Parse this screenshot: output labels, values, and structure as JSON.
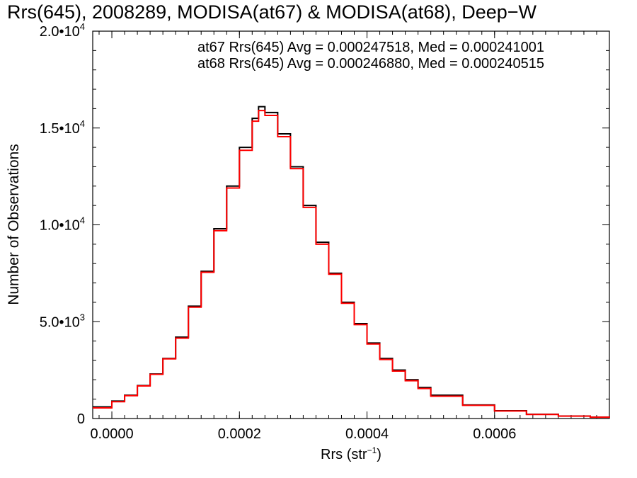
{
  "chart_data": {
    "type": "line",
    "title": "Rrs(645), 2008289, MODISA(at67) & MODISA(at68), Deep−W",
    "xlabel": {
      "main": "Rrs (str",
      "sup": "−1",
      "end": ")"
    },
    "ylabel": "Number of Observations",
    "xlim": [
      -3e-05,
      0.00078
    ],
    "ylim": [
      0,
      20000
    ],
    "x_ticks": [
      {
        "value": 0.0,
        "label": "0.0000"
      },
      {
        "value": 0.0002,
        "label": "0.0002"
      },
      {
        "value": 0.0004,
        "label": "0.0004"
      },
      {
        "value": 0.0006,
        "label": "0.0006"
      }
    ],
    "y_ticks": [
      {
        "value": 0,
        "mant": "0",
        "exp": ""
      },
      {
        "value": 5000,
        "mant": "5.0•10",
        "exp": "3"
      },
      {
        "value": 10000,
        "mant": "1.0•10",
        "exp": "4"
      },
      {
        "value": 15000,
        "mant": "1.5•10",
        "exp": "4"
      },
      {
        "value": 20000,
        "mant": "2.0•10",
        "exp": "4"
      }
    ],
    "annotations": [
      {
        "text": "at67 Rrs(645) Avg = 0.000247518, Med = 0.000241001",
        "color": "#000000"
      },
      {
        "text": "at68 Rrs(645) Avg = 0.000246880, Med = 0.000240515",
        "color": "#ff0000"
      }
    ],
    "series": [
      {
        "color": "#000000",
        "x": [
          -3e-05,
          0.0,
          2e-05,
          4e-05,
          6e-05,
          8e-05,
          0.0001,
          0.00012,
          0.00014,
          0.00016,
          0.00018,
          0.0002,
          0.00022,
          0.00023,
          0.00024,
          0.00026,
          0.00028,
          0.0003,
          0.00032,
          0.00034,
          0.00036,
          0.00038,
          0.0004,
          0.00042,
          0.00044,
          0.00046,
          0.00048,
          0.0005,
          0.00055,
          0.0006,
          0.00065,
          0.0007,
          0.00075,
          0.00078
        ],
        "y": [
          600,
          900,
          1200,
          1700,
          2300,
          3100,
          4200,
          5800,
          7600,
          9800,
          12000,
          14000,
          15500,
          16100,
          15800,
          14700,
          13000,
          11000,
          9100,
          7500,
          6000,
          4900,
          3900,
          3100,
          2500,
          2000,
          1600,
          1200,
          700,
          400,
          220,
          130,
          70,
          50
        ]
      },
      {
        "color": "#ff0000",
        "x": [
          -3e-05,
          0.0,
          2e-05,
          4e-05,
          6e-05,
          8e-05,
          0.0001,
          0.00012,
          0.00014,
          0.00016,
          0.00018,
          0.0002,
          0.00022,
          0.00023,
          0.00024,
          0.00026,
          0.00028,
          0.0003,
          0.00032,
          0.00034,
          0.00036,
          0.00038,
          0.0004,
          0.00042,
          0.00044,
          0.00046,
          0.00048,
          0.0005,
          0.00055,
          0.0006,
          0.00065,
          0.0007,
          0.00075,
          0.00078
        ],
        "y": [
          550,
          870,
          1180,
          1680,
          2280,
          3080,
          4150,
          5750,
          7550,
          9700,
          11900,
          13850,
          15350,
          15900,
          15650,
          14550,
          12900,
          10900,
          9000,
          7450,
          5950,
          4850,
          3850,
          3050,
          2450,
          1950,
          1550,
          1150,
          680,
          390,
          210,
          125,
          68,
          45
        ]
      }
    ]
  }
}
